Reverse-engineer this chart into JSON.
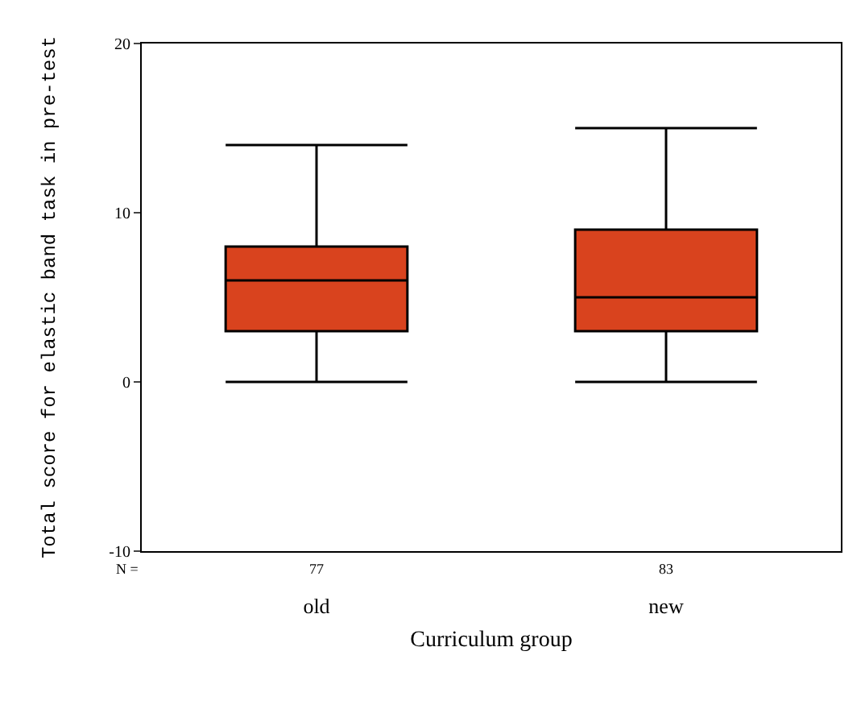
{
  "chart_data": {
    "type": "box",
    "xlabel": "Curriculum group",
    "ylabel": "Total score for elastic band task in pre-test",
    "categories": [
      "old",
      "new"
    ],
    "boxes": [
      {
        "low": 0,
        "q1": 3,
        "median": 6,
        "q3": 8,
        "high": 14
      },
      {
        "low": 0,
        "q1": 3,
        "median": 5,
        "q3": 9,
        "high": 15
      }
    ],
    "color": "#d9431e",
    "ylim": [
      -10,
      20
    ],
    "yticks": [
      -10,
      0,
      10,
      20
    ],
    "annotations": [
      "N =",
      "77",
      "83"
    ]
  }
}
